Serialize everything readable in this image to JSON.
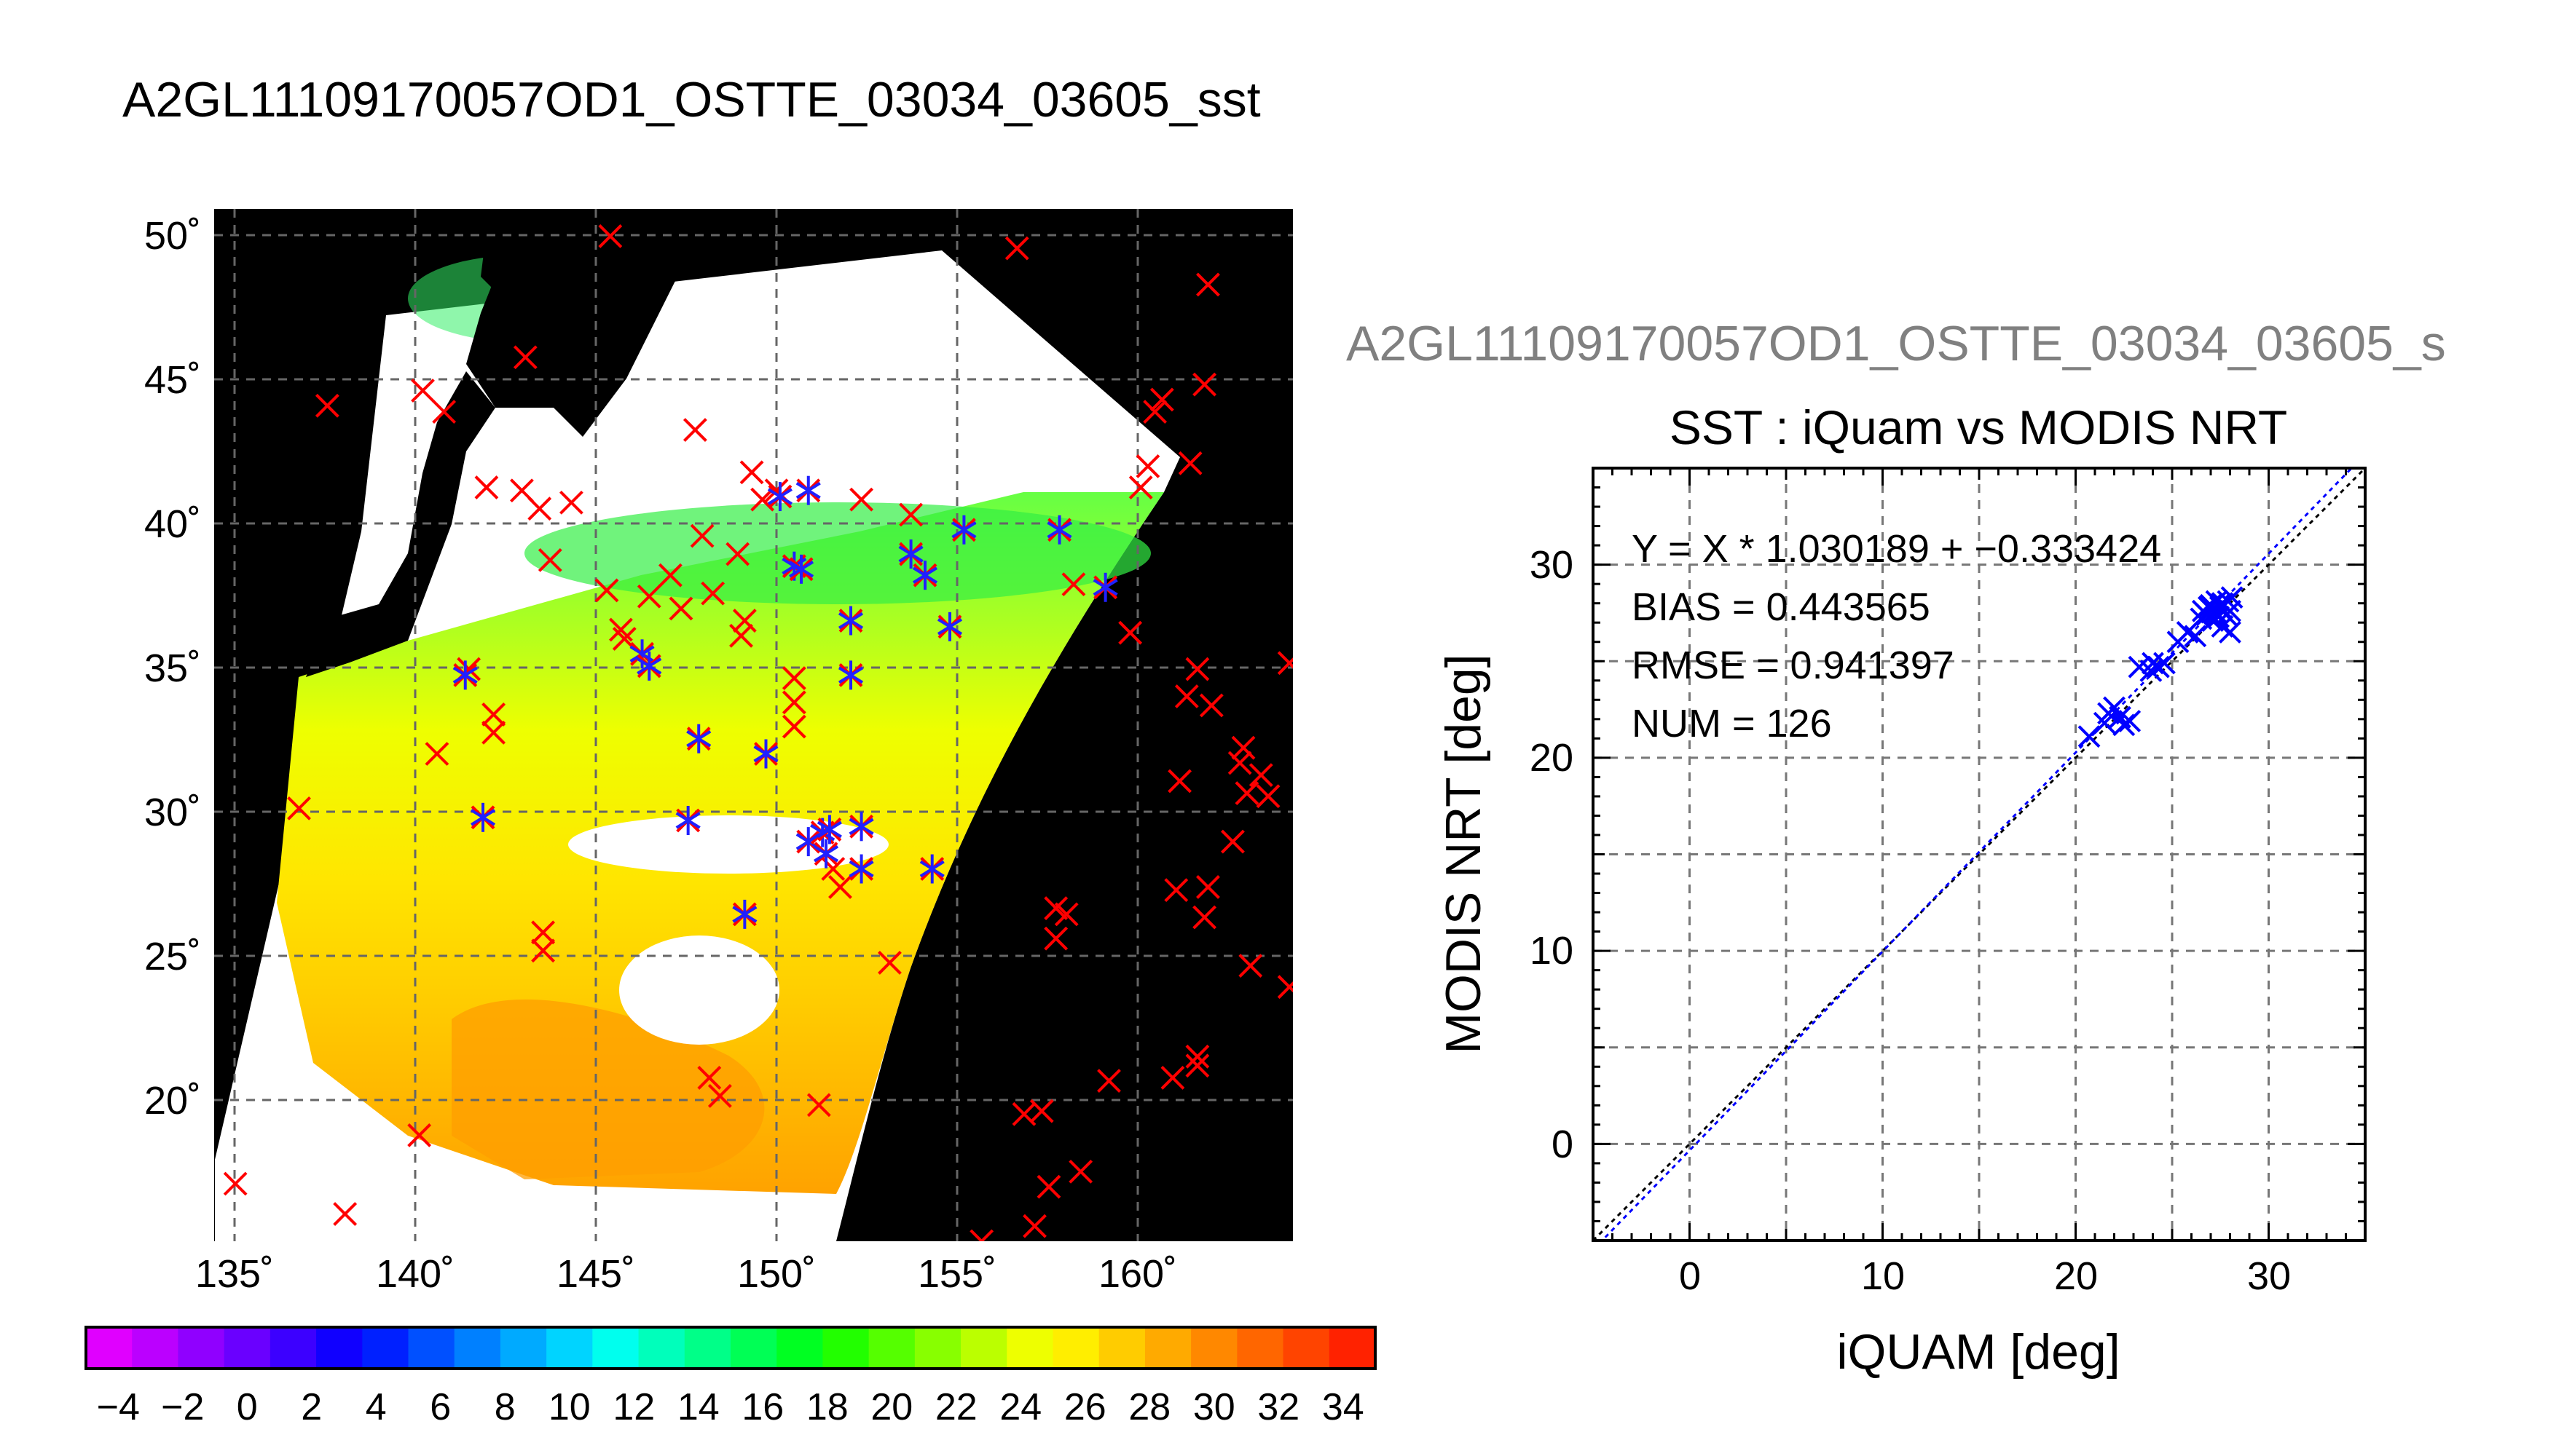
{
  "main_title": "A2GL11109170057OD1_OSTTE_03034_03605_sst",
  "colorbar": {
    "colors": [
      "#e000ff",
      "#bb00ff",
      "#9000ff",
      "#6a00ff",
      "#3c00ff",
      "#1000ff",
      "#0020ff",
      "#0050ff",
      "#0080ff",
      "#00aaff",
      "#00d4ff",
      "#00ffee",
      "#00ffbb",
      "#00ff88",
      "#00ff55",
      "#00ff22",
      "#22ff00",
      "#55ff00",
      "#88ff00",
      "#bbff00",
      "#eeff00",
      "#ffee00",
      "#ffcc00",
      "#ffaa00",
      "#ff8800",
      "#ff6600",
      "#ff4400",
      "#ff2200"
    ],
    "tick_labels": [
      "−4",
      "−2",
      "0",
      "2",
      "4",
      "6",
      "8",
      "10",
      "12",
      "14",
      "16",
      "18",
      "20",
      "22",
      "24",
      "26",
      "28",
      "30",
      "32",
      "34"
    ]
  },
  "chart_data": [
    {
      "type": "map",
      "title": "",
      "x_ticks": [
        "135˚",
        "140˚",
        "145˚",
        "150˚",
        "155˚",
        "160˚"
      ],
      "y_ticks": [
        "20˚",
        "25˚",
        "30˚",
        "35˚",
        "40˚",
        "45˚",
        "50˚"
      ],
      "lon_range": [
        134.4,
        164.9
      ],
      "lat_range": [
        16.8,
        50.9
      ],
      "grid": true,
      "series": [
        {
          "name": "",
          "marker": "red-x",
          "points": [
            [
              135,
              18.7
            ],
            [
              138.1,
              17.7
            ],
            [
              136.8,
              31.1
            ],
            [
              137.6,
              44.4
            ],
            [
              140.2,
              20.3
            ],
            [
              140.3,
              44.9
            ],
            [
              140.7,
              32.9
            ],
            [
              140.9,
              44.2
            ],
            [
              141.6,
              35.7
            ],
            [
              142.1,
              41.7
            ],
            [
              142.3,
              33.6
            ],
            [
              142.3,
              34.2
            ],
            [
              143.1,
              41.6
            ],
            [
              143.2,
              46
            ],
            [
              143.6,
              41
            ],
            [
              143.7,
              27
            ],
            [
              143.7,
              26.4
            ],
            [
              143.9,
              39.3
            ],
            [
              144.5,
              41.2
            ],
            [
              145.5,
              38.3
            ],
            [
              145.9,
              37
            ],
            [
              146,
              36.7
            ],
            [
              146.7,
              38.1
            ],
            [
              145.6,
              50
            ],
            [
              147.3,
              38.8
            ],
            [
              147.6,
              37.7
            ],
            [
              148,
              43.6
            ],
            [
              148.2,
              40.1
            ],
            [
              148.4,
              22.2
            ],
            [
              148.7,
              21.6
            ],
            [
              148.5,
              38.2
            ],
            [
              149.2,
              39.5
            ],
            [
              149.3,
              36.8
            ],
            [
              149.4,
              37.3
            ],
            [
              149.6,
              42.2
            ],
            [
              149.9,
              41.3
            ],
            [
              150.3,
              41.6
            ],
            [
              150.8,
              33.8
            ],
            [
              150.8,
              35.4
            ],
            [
              150.8,
              34.6
            ],
            [
              151.5,
              21.3
            ],
            [
              151.9,
              29.1
            ],
            [
              152.1,
              28.5
            ],
            [
              152.7,
              41.3
            ],
            [
              153.5,
              26
            ],
            [
              154.1,
              40.8
            ],
            [
              157.1,
              49.6
            ],
            [
              157.8,
              21.1
            ],
            [
              157.3,
              21
            ],
            [
              156.1,
              16.8
            ],
            [
              157.1,
              16.3
            ],
            [
              157.6,
              17.3
            ],
            [
              158,
              18.6
            ],
            [
              158.2,
              27.8
            ],
            [
              158.5,
              27.6
            ],
            [
              158.9,
              19.1
            ],
            [
              159.3,
              16.4
            ],
            [
              159.7,
              22.1
            ],
            [
              160.3,
              36.9
            ],
            [
              160.6,
              41.7
            ],
            [
              160.8,
              42.4
            ],
            [
              161,
              44.2
            ],
            [
              161.2,
              44.6
            ],
            [
              161.5,
              22.2
            ],
            [
              162,
              42.5
            ],
            [
              162.2,
              22.9
            ],
            [
              162.4,
              45.1
            ],
            [
              162.5,
              48.4
            ],
            [
              162.2,
              35.7
            ],
            [
              162.6,
              34.5
            ],
            [
              163.2,
              30
            ],
            [
              163.6,
              31.6
            ],
            [
              163.4,
              32.6
            ],
            [
              163.5,
              33.1
            ],
            [
              163.7,
              25.9
            ],
            [
              164.2,
              31.5
            ],
            [
              164.8,
              35.9
            ],
            [
              164.8,
              25.2
            ],
            [
              164,
              32.2
            ],
            [
              162.4,
              27.5
            ],
            [
              161.6,
              28.4
            ],
            [
              161.7,
              32
            ],
            [
              161.9,
              34.8
            ],
            [
              158.7,
              38.5
            ],
            [
              158.2,
              26.8
            ],
            [
              162.5,
              28.5
            ],
            [
              162.2,
              22.6
            ]
          ]
        },
        {
          "name": "",
          "marker": "blue-star",
          "points": [
            [
              141.5,
              35.5
            ],
            [
              142,
              30.8
            ],
            [
              146.5,
              36.2
            ],
            [
              146.7,
              35.8
            ],
            [
              147.8,
              30.7
            ],
            [
              148.1,
              33.4
            ],
            [
              149.4,
              27.6
            ],
            [
              150,
              32.9
            ],
            [
              150.4,
              41.4
            ],
            [
              150.8,
              39.1
            ],
            [
              151,
              39
            ],
            [
              151.2,
              41.6
            ],
            [
              151.2,
              30
            ],
            [
              151.6,
              30.3
            ],
            [
              151.8,
              30.4
            ],
            [
              151.7,
              29.6
            ],
            [
              152.4,
              37.3
            ],
            [
              152.4,
              35.5
            ],
            [
              152.7,
              30.5
            ],
            [
              152.7,
              29.1
            ],
            [
              154.1,
              39.5
            ],
            [
              154.5,
              38.8
            ],
            [
              154.7,
              29.1
            ],
            [
              155.2,
              37.1
            ],
            [
              155.6,
              40.3
            ],
            [
              158.3,
              40.3
            ],
            [
              159.6,
              38.4
            ]
          ]
        }
      ]
    },
    {
      "type": "scatter",
      "title": "SST : iQuam vs MODIS NRT",
      "subtitle": "A2GL11109170057OD1_OSTTE_03034_03605_s",
      "xlabel": "iQUAM [deg]",
      "ylabel": "MODIS NRT [deg]",
      "xlim": [
        -5,
        35
      ],
      "ylim": [
        -5,
        35
      ],
      "x_ticks": [
        "0",
        "10",
        "20",
        "30"
      ],
      "y_ticks": [
        "0",
        "10",
        "20",
        "30"
      ],
      "grid": true,
      "stats": [
        "Y = X * 1.030189 + −0.333424",
        "BIAS = 0.443565",
        "RMSE = 0.941397",
        "NUM = 126"
      ],
      "fit": {
        "slope": 1.030189,
        "intercept": -0.333424
      },
      "points": [
        [
          20.7,
          21.1
        ],
        [
          21.5,
          21.8
        ],
        [
          21.7,
          22.3
        ],
        [
          22,
          22.6
        ],
        [
          22.3,
          22.1
        ],
        [
          22.5,
          21.7
        ],
        [
          22.8,
          21.9
        ],
        [
          23.3,
          24.7
        ],
        [
          23.9,
          24.5
        ],
        [
          24,
          24.9
        ],
        [
          24.3,
          24.7
        ],
        [
          24.6,
          24.9
        ],
        [
          25.3,
          26
        ],
        [
          25.8,
          26.5
        ],
        [
          26.2,
          26.3
        ],
        [
          26.5,
          27.2
        ],
        [
          26.6,
          27.6
        ],
        [
          26.8,
          27.4
        ],
        [
          27,
          27.9
        ],
        [
          27.1,
          27.1
        ],
        [
          27.2,
          27.6
        ],
        [
          27.3,
          28.1
        ],
        [
          27.4,
          27.3
        ],
        [
          27.5,
          27.8
        ],
        [
          27.6,
          26.8
        ],
        [
          27.7,
          27.9
        ],
        [
          27.8,
          27.4
        ],
        [
          27.9,
          28.1
        ],
        [
          28,
          27.6
        ],
        [
          28.1,
          28.3
        ],
        [
          28,
          26.5
        ],
        [
          27.3,
          27.5
        ],
        [
          26.9,
          27.8
        ],
        [
          27.6,
          28
        ]
      ]
    }
  ]
}
